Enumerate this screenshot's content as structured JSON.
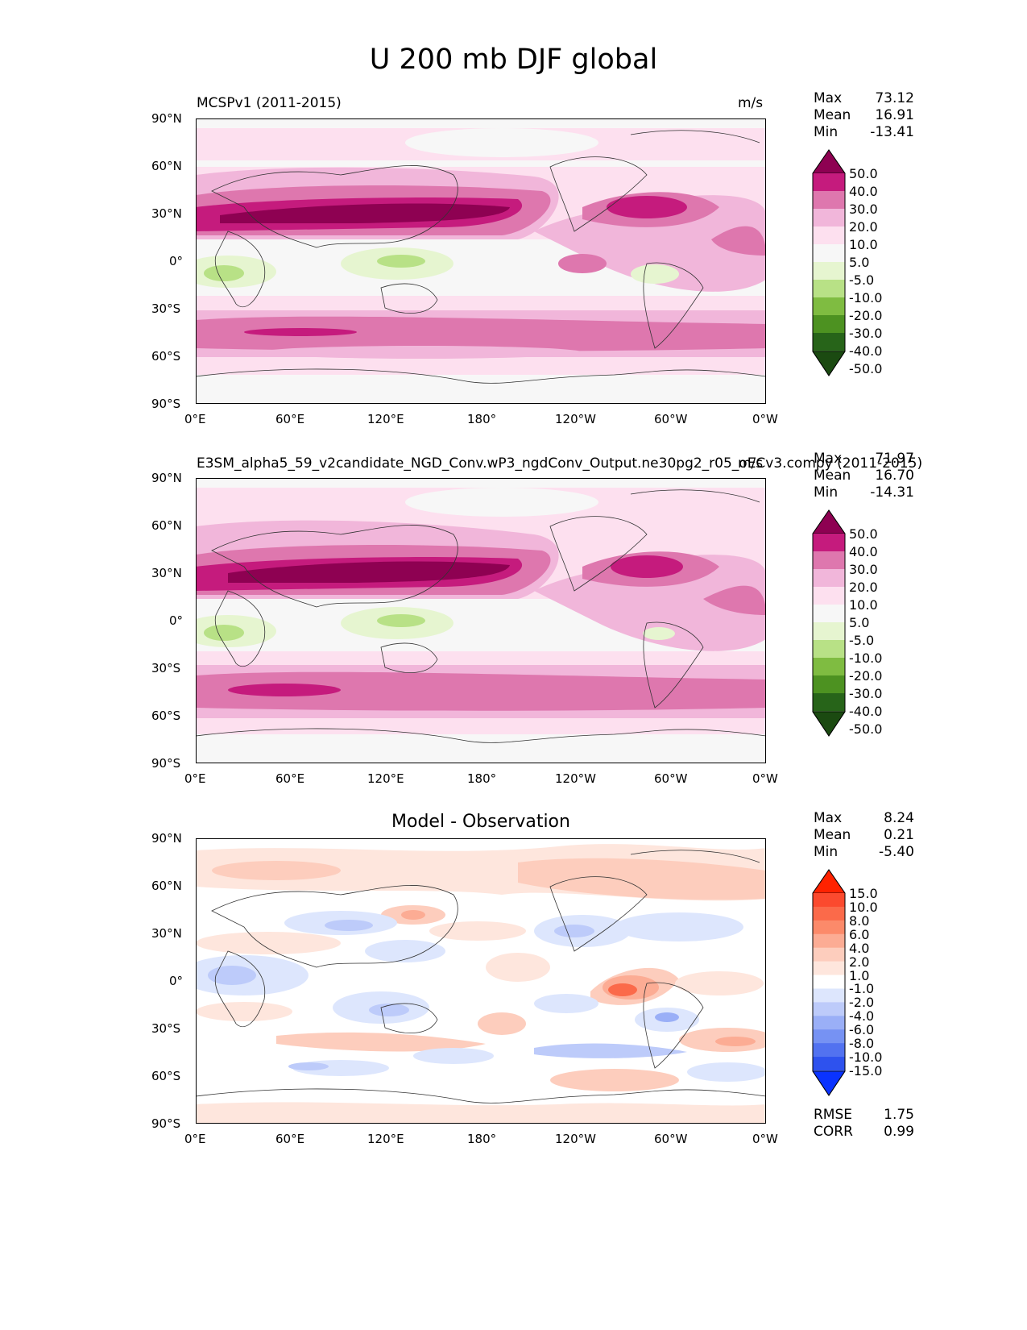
{
  "figure": {
    "title": "U 200 mb DJF global"
  },
  "chart_data": [
    {
      "type": "heatmap",
      "title_left": "MCSPv1 (2011-2015)",
      "title_right": "m/s",
      "lat_ticks": [
        "90°N",
        "60°N",
        "30°N",
        "0°",
        "30°S",
        "60°S",
        "90°S"
      ],
      "lon_ticks": [
        "0°E",
        "60°E",
        "120°E",
        "180°",
        "120°W",
        "60°W",
        "0°W"
      ],
      "stats": {
        "max_label": "Max",
        "max": "73.12",
        "mean_label": "Mean",
        "mean": "16.91",
        "min_label": "Min",
        "min": "-13.41"
      },
      "colorbar": {
        "levels": [
          "50.0",
          "40.0",
          "30.0",
          "20.0",
          "10.0",
          "5.0",
          "-5.0",
          "-10.0",
          "-20.0",
          "-30.0",
          "-40.0",
          "-50.0"
        ],
        "colors": [
          "#8e0152",
          "#c51b7d",
          "#de77ae",
          "#f1b6da",
          "#fde0ef",
          "#f7f7f7",
          "#e6f5d0",
          "#b8e186",
          "#7fbc41",
          "#4d9221",
          "#276419",
          "#1b4a11"
        ]
      }
    },
    {
      "type": "heatmap",
      "title_left": "E3SM_alpha5_59_v2candidate_NGD_Conv.wP3_ngdConv_Output.ne30pg2_r05_oECv3.compy (2011-2015)",
      "title_right": "m/s",
      "lat_ticks": [
        "90°N",
        "60°N",
        "30°N",
        "0°",
        "30°S",
        "60°S",
        "90°S"
      ],
      "lon_ticks": [
        "0°E",
        "60°E",
        "120°E",
        "180°",
        "120°W",
        "60°W",
        "0°W"
      ],
      "stats": {
        "max_label": "Max",
        "max": "71.97",
        "mean_label": "Mean",
        "mean": "16.70",
        "min_label": "Min",
        "min": "-14.31"
      },
      "colorbar": {
        "levels": [
          "50.0",
          "40.0",
          "30.0",
          "20.0",
          "10.0",
          "5.0",
          "-5.0",
          "-10.0",
          "-20.0",
          "-30.0",
          "-40.0",
          "-50.0"
        ],
        "colors": [
          "#8e0152",
          "#c51b7d",
          "#de77ae",
          "#f1b6da",
          "#fde0ef",
          "#f7f7f7",
          "#e6f5d0",
          "#b8e186",
          "#7fbc41",
          "#4d9221",
          "#276419",
          "#1b4a11"
        ]
      }
    },
    {
      "type": "heatmap",
      "title_center": "Model - Observation",
      "lat_ticks": [
        "90°N",
        "60°N",
        "30°N",
        "0°",
        "30°S",
        "60°S",
        "90°S"
      ],
      "lon_ticks": [
        "0°E",
        "60°E",
        "120°E",
        "180°",
        "120°W",
        "60°W",
        "0°W"
      ],
      "stats": {
        "max_label": "Max",
        "max": "8.24",
        "mean_label": "Mean",
        "mean": "0.21",
        "min_label": "Min",
        "min": "-5.40",
        "rmse_label": "RMSE",
        "rmse": "1.75",
        "corr_label": "CORR",
        "corr": "0.99"
      },
      "colorbar": {
        "levels": [
          "15.0",
          "10.0",
          "8.0",
          "6.0",
          "4.0",
          "2.0",
          "1.0",
          "-1.0",
          "-2.0",
          "-4.0",
          "-6.0",
          "-8.0",
          "-10.0",
          "-15.0"
        ],
        "colors": [
          "#ff2200",
          "#fb4a2e",
          "#fb6a4a",
          "#fc8a6a",
          "#fcac94",
          "#fdcdbd",
          "#fee6dd",
          "#ffffff",
          "#dde6fd",
          "#bdcbfa",
          "#9aaff7",
          "#7692f3",
          "#5272f0",
          "#2e52ee",
          "#0a33ff"
        ]
      }
    }
  ]
}
